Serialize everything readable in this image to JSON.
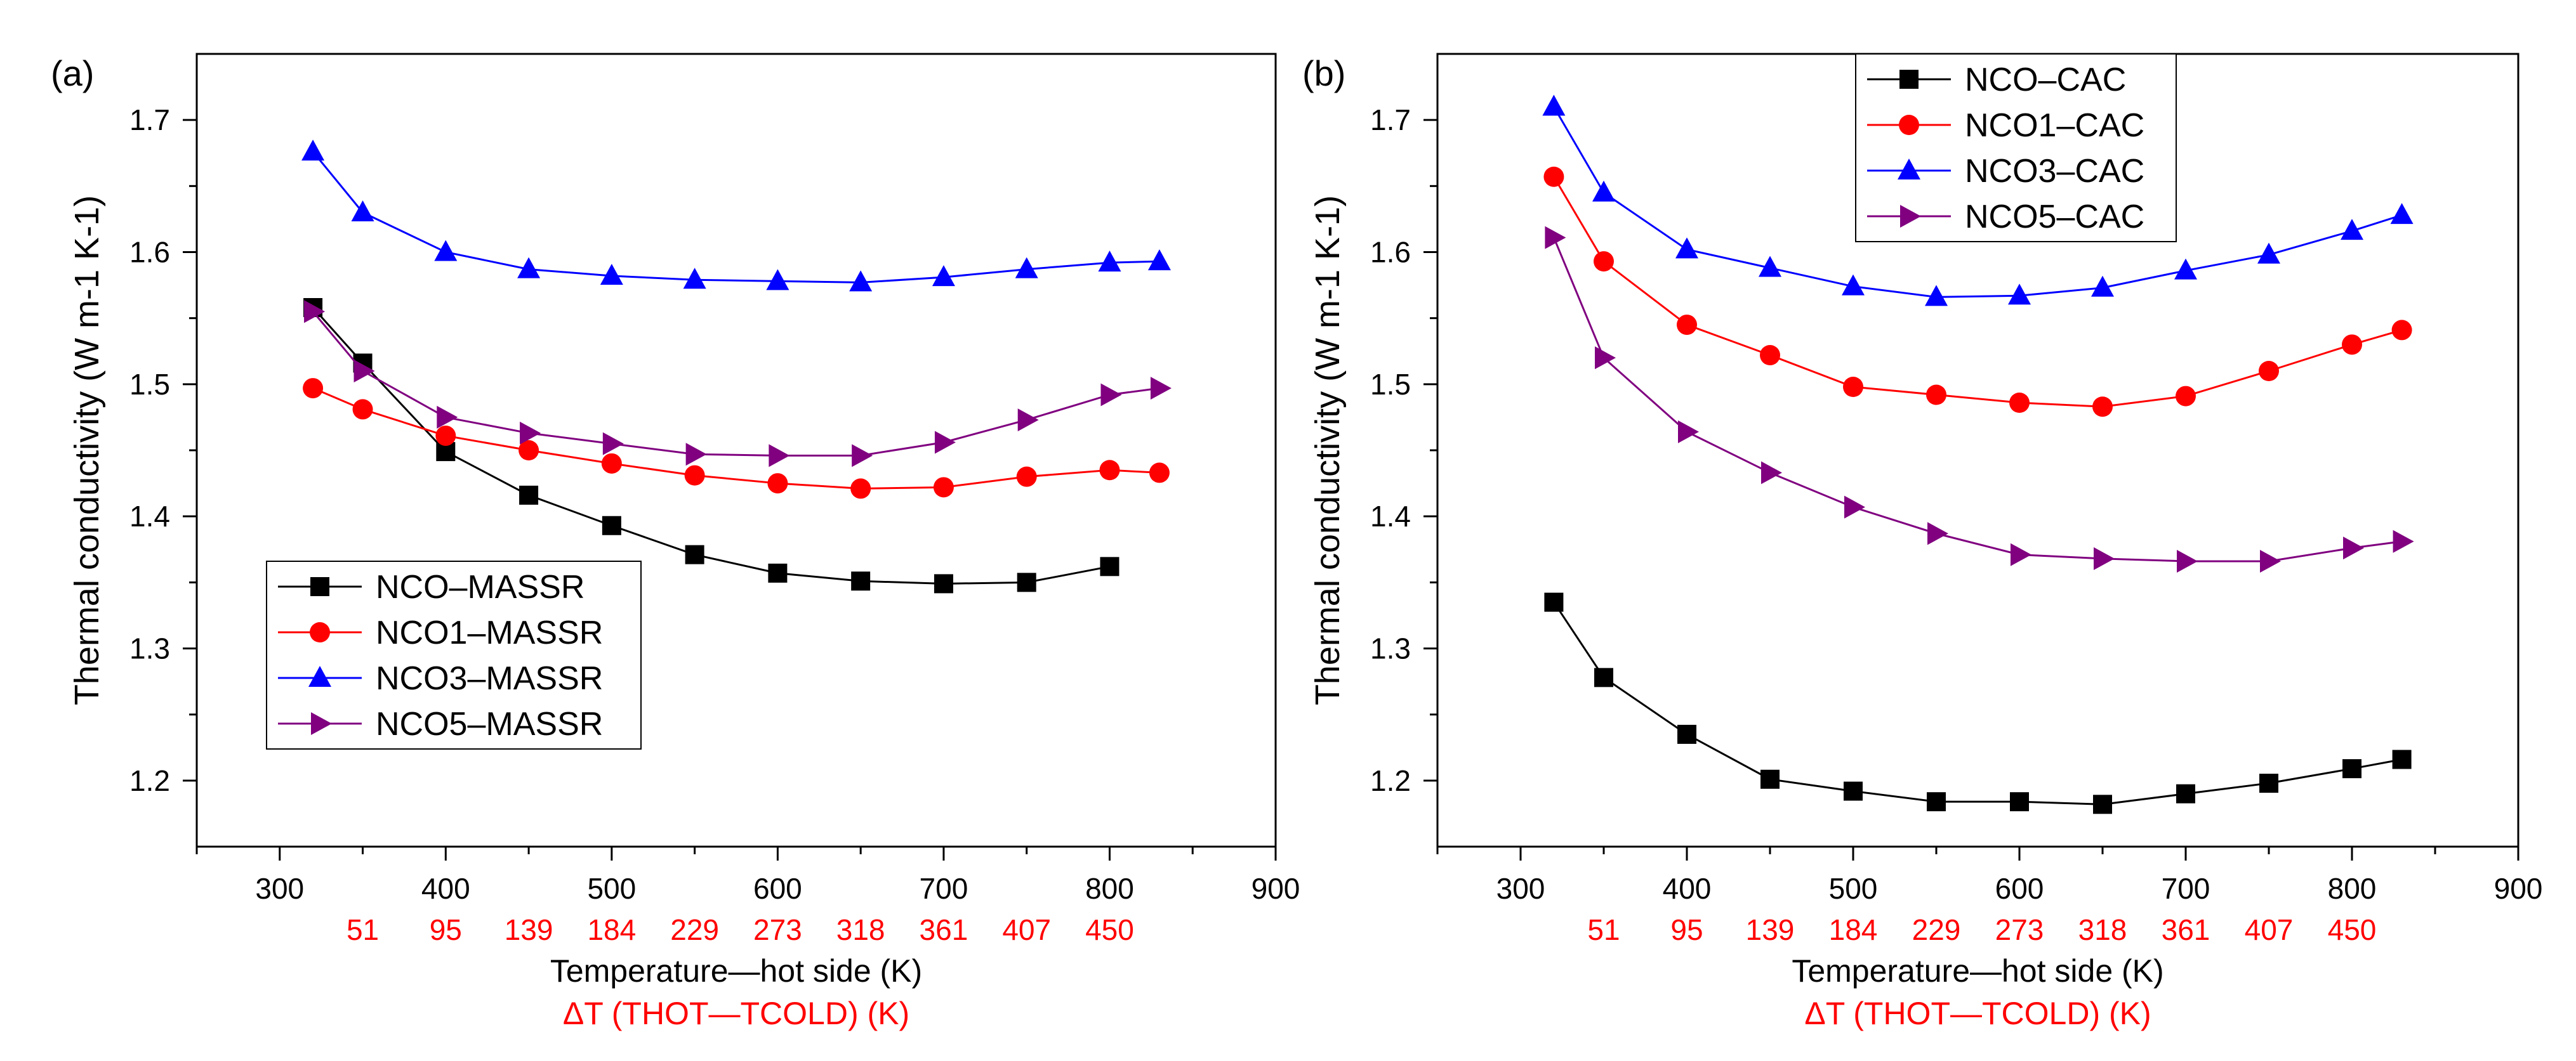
{
  "figure": {
    "x_axis_label": "Temperature—hot side (K)",
    "dt_axis_label": "ΔT (THOT—TCOLD) (K)",
    "y_axis_label": "Thermal conductivity (W m-1 K-1)",
    "colors": {
      "black": "#000000",
      "red": "#ff0000",
      "blue": "#0000ff",
      "purple": "#800080",
      "axis_red": "#ff0000"
    }
  },
  "chart_data": [
    {
      "type": "line",
      "panel_label": "(a)",
      "xlabel": "Temperature—hot side (K)",
      "secondary_xlabel": "ΔT (THOT—TCOLD) (K)",
      "ylabel": "Thermal conductivity (W m-1 K-1)",
      "xlim": [
        250,
        900
      ],
      "ylim": [
        1.15,
        1.75
      ],
      "x_ticks": [
        300,
        400,
        500,
        600,
        700,
        800,
        900
      ],
      "y_ticks": [
        1.2,
        1.3,
        1.4,
        1.5,
        1.6,
        1.7
      ],
      "secondary_ticks": [
        {
          "x": 350,
          "label": "51"
        },
        {
          "x": 400,
          "label": "95"
        },
        {
          "x": 450,
          "label": "139"
        },
        {
          "x": 500,
          "label": "184"
        },
        {
          "x": 550,
          "label": "229"
        },
        {
          "x": 600,
          "label": "273"
        },
        {
          "x": 650,
          "label": "318"
        },
        {
          "x": 700,
          "label": "361"
        },
        {
          "x": 750,
          "label": "407"
        },
        {
          "x": 800,
          "label": "450"
        }
      ],
      "legend_position": "lower-left",
      "series": [
        {
          "name": "NCO–MASSR",
          "color": "#000000",
          "marker": "square",
          "x": [
            320,
            350,
            400,
            450,
            500,
            550,
            600,
            650,
            700,
            750,
            800
          ],
          "values": [
            1.558,
            1.516,
            1.449,
            1.416,
            1.393,
            1.371,
            1.357,
            1.351,
            1.349,
            1.35,
            1.362
          ]
        },
        {
          "name": "NCO1–MASSR",
          "color": "#ff0000",
          "marker": "circle",
          "x": [
            320,
            350,
            400,
            450,
            500,
            550,
            600,
            650,
            700,
            750,
            800,
            830
          ],
          "values": [
            1.497,
            1.481,
            1.461,
            1.45,
            1.44,
            1.431,
            1.425,
            1.421,
            1.422,
            1.43,
            1.435,
            1.433
          ]
        },
        {
          "name": "NCO3–MASSR",
          "color": "#0000ff",
          "marker": "triangle-up",
          "x": [
            320,
            350,
            400,
            450,
            500,
            550,
            600,
            650,
            700,
            750,
            800,
            830
          ],
          "values": [
            1.676,
            1.63,
            1.6,
            1.587,
            1.582,
            1.579,
            1.578,
            1.577,
            1.581,
            1.587,
            1.592,
            1.593
          ]
        },
        {
          "name": "NCO5–MASSR",
          "color": "#800080",
          "marker": "triangle-right",
          "x": [
            320,
            350,
            400,
            450,
            500,
            550,
            600,
            650,
            700,
            750,
            800,
            830
          ],
          "values": [
            1.555,
            1.51,
            1.475,
            1.463,
            1.455,
            1.447,
            1.446,
            1.446,
            1.456,
            1.473,
            1.492,
            1.497
          ]
        }
      ]
    },
    {
      "type": "line",
      "panel_label": "(b)",
      "xlabel": "Temperature—hot side (K)",
      "secondary_xlabel": "ΔT (THOT—TCOLD) (K)",
      "ylabel": "Thermal conductivity (W m-1 K-1)",
      "xlim": [
        250,
        900
      ],
      "ylim": [
        1.15,
        1.75
      ],
      "x_ticks": [
        300,
        400,
        500,
        600,
        700,
        800,
        900
      ],
      "y_ticks": [
        1.2,
        1.3,
        1.4,
        1.5,
        1.6,
        1.7
      ],
      "secondary_ticks": [
        {
          "x": 350,
          "label": "51"
        },
        {
          "x": 400,
          "label": "95"
        },
        {
          "x": 450,
          "label": "139"
        },
        {
          "x": 500,
          "label": "184"
        },
        {
          "x": 550,
          "label": "229"
        },
        {
          "x": 600,
          "label": "273"
        },
        {
          "x": 650,
          "label": "318"
        },
        {
          "x": 700,
          "label": "361"
        },
        {
          "x": 750,
          "label": "407"
        },
        {
          "x": 800,
          "label": "450"
        }
      ],
      "legend_position": "top-center",
      "series": [
        {
          "name": "NCO–CAC",
          "color": "#000000",
          "marker": "square",
          "x": [
            320,
            350,
            400,
            450,
            500,
            550,
            600,
            650,
            700,
            750,
            800,
            830
          ],
          "values": [
            1.335,
            1.278,
            1.235,
            1.201,
            1.192,
            1.184,
            1.184,
            1.182,
            1.19,
            1.198,
            1.209,
            1.216
          ]
        },
        {
          "name": "NCO1–CAC",
          "color": "#ff0000",
          "marker": "circle",
          "x": [
            320,
            350,
            400,
            450,
            500,
            550,
            600,
            650,
            700,
            750,
            800,
            830
          ],
          "values": [
            1.657,
            1.593,
            1.545,
            1.522,
            1.498,
            1.492,
            1.486,
            1.483,
            1.491,
            1.51,
            1.53,
            1.541
          ]
        },
        {
          "name": "NCO3–CAC",
          "color": "#0000ff",
          "marker": "triangle-up",
          "x": [
            320,
            350,
            400,
            450,
            500,
            550,
            600,
            650,
            700,
            750,
            800,
            830
          ],
          "values": [
            1.71,
            1.645,
            1.602,
            1.588,
            1.574,
            1.566,
            1.567,
            1.573,
            1.586,
            1.598,
            1.616,
            1.628
          ]
        },
        {
          "name": "NCO5–CAC",
          "color": "#800080",
          "marker": "triangle-right",
          "x": [
            320,
            350,
            400,
            450,
            500,
            550,
            600,
            650,
            700,
            750,
            800,
            830
          ],
          "values": [
            1.611,
            1.52,
            1.464,
            1.433,
            1.407,
            1.387,
            1.371,
            1.368,
            1.366,
            1.366,
            1.376,
            1.381
          ]
        }
      ]
    }
  ]
}
